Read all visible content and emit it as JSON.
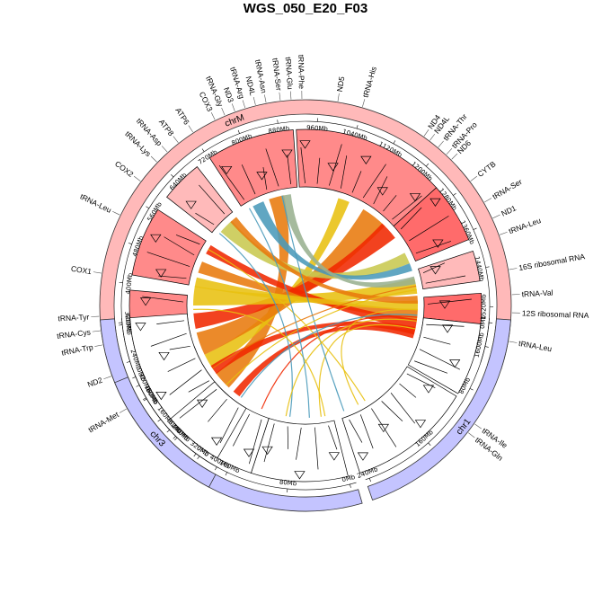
{
  "chart_data": {
    "type": "circos",
    "title": "WGS_050_E20_F03",
    "colors": {
      "chrM_band": "#FFB9B9",
      "nuclear_band": "#C4C4FF",
      "region_light": "#FFBABA",
      "region_mid": "#FF8A8A",
      "region_dark": "#FF6B6B",
      "link_orange": "#E87A0C",
      "link_red": "#F02800",
      "link_yellow": "#E8C010",
      "link_olive": "#C8C850",
      "link_blue": "#4A9ABA",
      "link_sage": "#98B090"
    },
    "chromosomes": [
      {
        "name": "chrM",
        "start_deg": 210,
        "end_deg": 468
      },
      {
        "name": "chr1",
        "start_deg": 94,
        "end_deg": 161
      },
      {
        "name": "chr2",
        "start_deg": 164,
        "end_deg": 266
      },
      {
        "name": "chr3",
        "start_deg": 248,
        "end_deg": 208
      }
    ],
    "ticks": [
      {
        "chr": "chrM",
        "labels": [
          "0Mb",
          "80Mb",
          "160Mb",
          "240Mb",
          "320Mb",
          "400Mb",
          "480Mb",
          "560Mb",
          "640Mb",
          "720Mb",
          "800Mb",
          "880Mb",
          "960Mb",
          "1040Mb",
          "1120Mb",
          "1200Mb",
          "1280Mb",
          "1360Mb",
          "1440Mb",
          "1520Mb",
          "1600Mb"
        ]
      },
      {
        "chr": "chr1",
        "labels": [
          "0Mb",
          "80Mb",
          "160Mb",
          "240Mb"
        ]
      },
      {
        "chr": "chr2",
        "labels": [
          "0Mb",
          "80Mb",
          "160Mb",
          "240Mb",
          "320Mb",
          "400Mb"
        ]
      },
      {
        "chr": "chr3",
        "labels": [
          "0Mb",
          "80Mb",
          "160Mb",
          "240Mb",
          "320Mb",
          "400Mb"
        ]
      }
    ],
    "genes": [
      {
        "name": "tRNA-Met",
        "deg": 240
      },
      {
        "name": "ND2",
        "deg": 250
      },
      {
        "name": "tRNA-Trp",
        "deg": 259
      },
      {
        "name": "tRNA-Cys",
        "deg": 263
      },
      {
        "name": "tRNA-Tyr",
        "deg": 267
      },
      {
        "name": "COX1",
        "deg": 279
      },
      {
        "name": "tRNA-Leu",
        "deg": 296
      },
      {
        "name": "COX2",
        "deg": 307
      },
      {
        "name": "tRNA-Lys",
        "deg": 314
      },
      {
        "name": "tRNA-Asp",
        "deg": 318
      },
      {
        "name": "ATP8",
        "deg": 322
      },
      {
        "name": "ATP6",
        "deg": 327
      },
      {
        "name": "COX3",
        "deg": 334
      },
      {
        "name": "tRNA-Gly",
        "deg": 337
      },
      {
        "name": "ND3",
        "deg": 340
      },
      {
        "name": "tRNA-Arg",
        "deg": 343
      },
      {
        "name": "ND4L",
        "deg": 346
      },
      {
        "name": "tRNA-Asn",
        "deg": 349
      },
      {
        "name": "tRNA-Ser",
        "deg": 353
      },
      {
        "name": "tRNA-Glu",
        "deg": 356
      },
      {
        "name": "tRNA-Phe",
        "deg": 359
      },
      {
        "name": "ND5",
        "deg": 369
      },
      {
        "name": "tRNA-His",
        "deg": 376
      },
      {
        "name": "ND4",
        "deg": 395
      },
      {
        "name": "ND4L",
        "deg": 397
      },
      {
        "name": "tRNA-Thr",
        "deg": 400
      },
      {
        "name": "tRNA-Pro",
        "deg": 403
      },
      {
        "name": "ND6",
        "deg": 405
      },
      {
        "name": "CYTB",
        "deg": 413
      },
      {
        "name": "tRNA-Ser",
        "deg": 420
      },
      {
        "name": "ND1",
        "deg": 425
      },
      {
        "name": "tRNA-Leu",
        "deg": 430
      },
      {
        "name": "16S ribosomal RNA",
        "deg": 440
      },
      {
        "name": "tRNA-Val",
        "deg": 447
      },
      {
        "name": "12S ribosomal RNA",
        "deg": 452
      },
      {
        "name": "tRNA-Leu",
        "deg": 460
      },
      {
        "name": "tRNA-Ile",
        "deg": 485
      },
      {
        "name": "tRNA-Gln",
        "deg": 488
      }
    ],
    "regions": [
      {
        "a1": 211,
        "a2": 228,
        "shade": "region_mid"
      },
      {
        "a1": 232,
        "a2": 250,
        "shade": "region_light"
      },
      {
        "a1": 255,
        "a2": 275,
        "shade": "region_mid"
      },
      {
        "a1": 280,
        "a2": 303,
        "shade": "region_mid"
      },
      {
        "a1": 308,
        "a2": 322,
        "shade": "region_light"
      },
      {
        "a1": 327,
        "a2": 356,
        "shade": "region_mid"
      },
      {
        "a1": 357,
        "a2": 408,
        "shade": "region_mid"
      },
      {
        "a1": 408,
        "a2": 428,
        "shade": "region_dark"
      },
      {
        "a1": 432,
        "a2": 442,
        "shade": "region_light"
      },
      {
        "a1": 446,
        "a2": 466,
        "shade": "region_dark"
      },
      {
        "a1": 96,
        "a2": 120,
        "shade": "none"
      },
      {
        "a1": 121,
        "a2": 162,
        "shade": "none"
      },
      {
        "a1": 166,
        "a2": 198,
        "shade": "none"
      },
      {
        "a1": 198,
        "a2": 266,
        "shade": "none"
      },
      {
        "a1": 210,
        "a2": 230,
        "shade": "none"
      }
    ],
    "links": [
      {
        "a1": 228,
        "w1": 10,
        "a2": 345,
        "w2": 8,
        "color": "link_orange"
      },
      {
        "a1": 240,
        "w1": 8,
        "a2": 380,
        "w2": 6,
        "color": "link_yellow"
      },
      {
        "a1": 250,
        "w1": 12,
        "a2": 398,
        "w2": 14,
        "color": "link_orange"
      },
      {
        "a1": 262,
        "w1": 8,
        "a2": 408,
        "w2": 10,
        "color": "link_red"
      },
      {
        "a1": 275,
        "w1": 10,
        "a2": 440,
        "w2": 8,
        "color": "link_yellow"
      },
      {
        "a1": 290,
        "w1": 6,
        "a2": 455,
        "w2": 6,
        "color": "link_orange"
      },
      {
        "a1": 300,
        "w1": 5,
        "a2": 460,
        "w2": 6,
        "color": "link_red"
      },
      {
        "a1": 315,
        "w1": 8,
        "a2": 425,
        "w2": 6,
        "color": "link_olive"
      },
      {
        "a1": 335,
        "w1": 6,
        "a2": 430,
        "w2": 4,
        "color": "link_blue"
      },
      {
        "a1": 350,
        "w1": 5,
        "a2": 437,
        "w2": 4,
        "color": "link_sage"
      },
      {
        "a1": 218,
        "w1": 4,
        "a2": 465,
        "w2": 4,
        "color": "link_red"
      },
      {
        "a1": 235,
        "w1": 5,
        "a2": 463,
        "w2": 4,
        "color": "link_red"
      },
      {
        "a1": 282,
        "w1": 5,
        "a2": 450,
        "w2": 5,
        "color": "link_yellow"
      },
      {
        "a1": 320,
        "w1": 4,
        "a2": 447,
        "w2": 4,
        "color": "link_orange"
      },
      {
        "a1": 456,
        "w1": 1.5,
        "a2": 203,
        "w2": 1.5,
        "color": "link_red"
      },
      {
        "a1": 462,
        "w1": 1.5,
        "a2": 172,
        "w2": 1.5,
        "color": "link_yellow"
      },
      {
        "a1": 452,
        "w1": 1.5,
        "a2": 152,
        "w2": 1.5,
        "color": "link_yellow"
      },
      {
        "a1": 348,
        "w1": 1.5,
        "a2": 160,
        "w2": 1.5,
        "color": "link_blue"
      },
      {
        "a1": 300,
        "w1": 1.5,
        "a2": 148,
        "w2": 1.5,
        "color": "link_yellow"
      },
      {
        "a1": 310,
        "w1": 1.5,
        "a2": 188,
        "w2": 1.5,
        "color": "link_blue"
      },
      {
        "a1": 268,
        "w1": 1.5,
        "a2": 170,
        "w2": 1.5,
        "color": "link_yellow"
      },
      {
        "a1": 455,
        "w1": 1.5,
        "a2": 215,
        "w2": 1.5,
        "color": "link_blue"
      },
      {
        "a1": 442,
        "w1": 1.5,
        "a2": 225,
        "w2": 1.5,
        "color": "link_yellow"
      },
      {
        "a1": 440,
        "w1": 1.5,
        "a2": 236,
        "w2": 1.5,
        "color": "link_orange"
      },
      {
        "a1": 458,
        "w1": 1.5,
        "a2": 190,
        "w2": 1.5,
        "color": "link_yellow"
      },
      {
        "a1": 330,
        "w1": 1.5,
        "a2": 178,
        "w2": 1.5,
        "color": "link_blue"
      }
    ]
  }
}
